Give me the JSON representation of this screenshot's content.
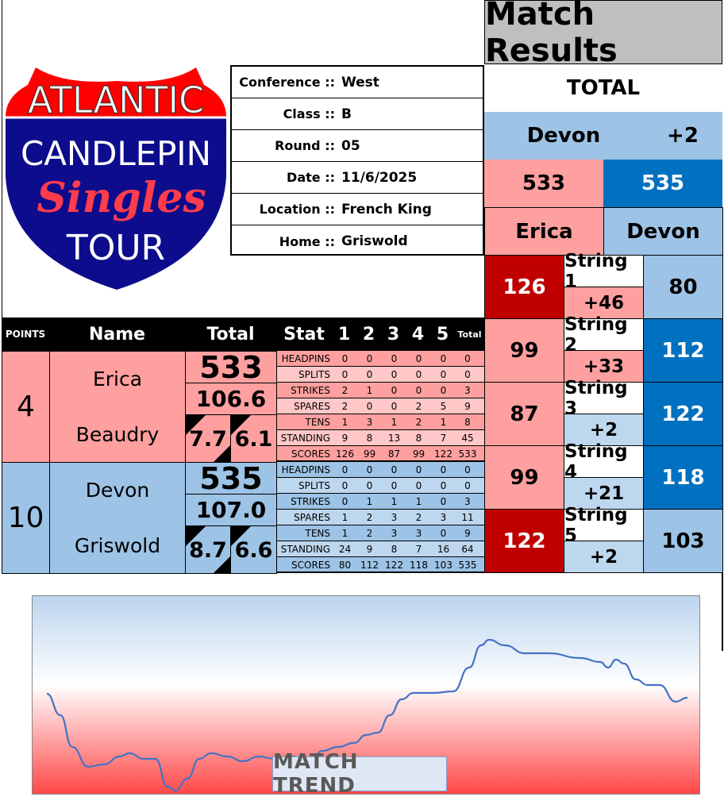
{
  "logo": {
    "line1": "ATLANTIC",
    "line2": "CANDLEPIN",
    "line3": "Singles",
    "line4": "TOUR"
  },
  "info": [
    {
      "label": "Conference ::",
      "value": "West"
    },
    {
      "label": "Class ::",
      "value": "B"
    },
    {
      "label": "Round ::",
      "value": "05"
    },
    {
      "label": "Date ::",
      "value": "11/6/2025"
    },
    {
      "label": "Location ::",
      "value": "French King"
    },
    {
      "label": "Home ::",
      "value": "Griswold"
    }
  ],
  "results": {
    "title": "Match Results",
    "total_label": "TOTAL",
    "leader": "Devon",
    "margin": "+2",
    "score_a": "533",
    "score_b": "535",
    "name_a": "Erica",
    "name_b": "Devon",
    "strings": [
      {
        "label": "String 1",
        "a": "126",
        "diff": "+46",
        "b": "80"
      },
      {
        "label": "String 2",
        "a": "99",
        "diff": "+33",
        "b": "112"
      },
      {
        "label": "String 3",
        "a": "87",
        "diff": "+2",
        "b": "122"
      },
      {
        "label": "String 4",
        "a": "99",
        "diff": "+21",
        "b": "118"
      },
      {
        "label": "String 5",
        "a": "122",
        "diff": "+2",
        "b": "103"
      }
    ]
  },
  "table": {
    "headers": {
      "points": "POINTS",
      "name": "Name",
      "total": "Total",
      "stat": "Stat",
      "g1": "1",
      "g2": "2",
      "g3": "3",
      "g4": "4",
      "g5": "5",
      "tot": "Total"
    },
    "players": [
      {
        "points": "4",
        "first": "Erica",
        "last": "Beaudry",
        "total": "533",
        "avg": "106.6",
        "s1": "7.7",
        "s2": "6.1",
        "stats": [
          [
            "HEADPINS",
            "0",
            "0",
            "0",
            "0",
            "0",
            "0"
          ],
          [
            "SPLITS",
            "0",
            "0",
            "0",
            "0",
            "0",
            "0"
          ],
          [
            "STRIKES",
            "2",
            "1",
            "0",
            "0",
            "0",
            "3"
          ],
          [
            "SPARES",
            "2",
            "0",
            "0",
            "2",
            "5",
            "9"
          ],
          [
            "TENS",
            "1",
            "3",
            "1",
            "2",
            "1",
            "8"
          ],
          [
            "STANDING",
            "9",
            "8",
            "13",
            "8",
            "7",
            "45"
          ],
          [
            "SCORES",
            "126",
            "99",
            "87",
            "99",
            "122",
            "533"
          ]
        ]
      },
      {
        "points": "10",
        "first": "Devon",
        "last": "Griswold",
        "total": "535",
        "avg": "107.0",
        "s1": "8.7",
        "s2": "6.6",
        "stats": [
          [
            "HEADPINS",
            "0",
            "0",
            "0",
            "0",
            "0",
            "0"
          ],
          [
            "SPLITS",
            "0",
            "0",
            "0",
            "0",
            "0",
            "0"
          ],
          [
            "STRIKES",
            "0",
            "1",
            "1",
            "1",
            "0",
            "3"
          ],
          [
            "SPARES",
            "1",
            "2",
            "3",
            "2",
            "3",
            "11"
          ],
          [
            "TENS",
            "1",
            "2",
            "3",
            "3",
            "0",
            "9"
          ],
          [
            "STANDING",
            "24",
            "9",
            "8",
            "7",
            "16",
            "64"
          ],
          [
            "SCORES",
            "80",
            "112",
            "122",
            "118",
            "103",
            "535"
          ]
        ]
      }
    ]
  },
  "trend": {
    "label": "MATCH TREND"
  },
  "colors": {
    "pink": "#ffa0a0",
    "light_pink": "#ffc7c7",
    "blue": "#9dc3e6",
    "light_blue": "#bdd7ee",
    "dark_red": "#c00000",
    "dark_blue": "#0070c0"
  }
}
